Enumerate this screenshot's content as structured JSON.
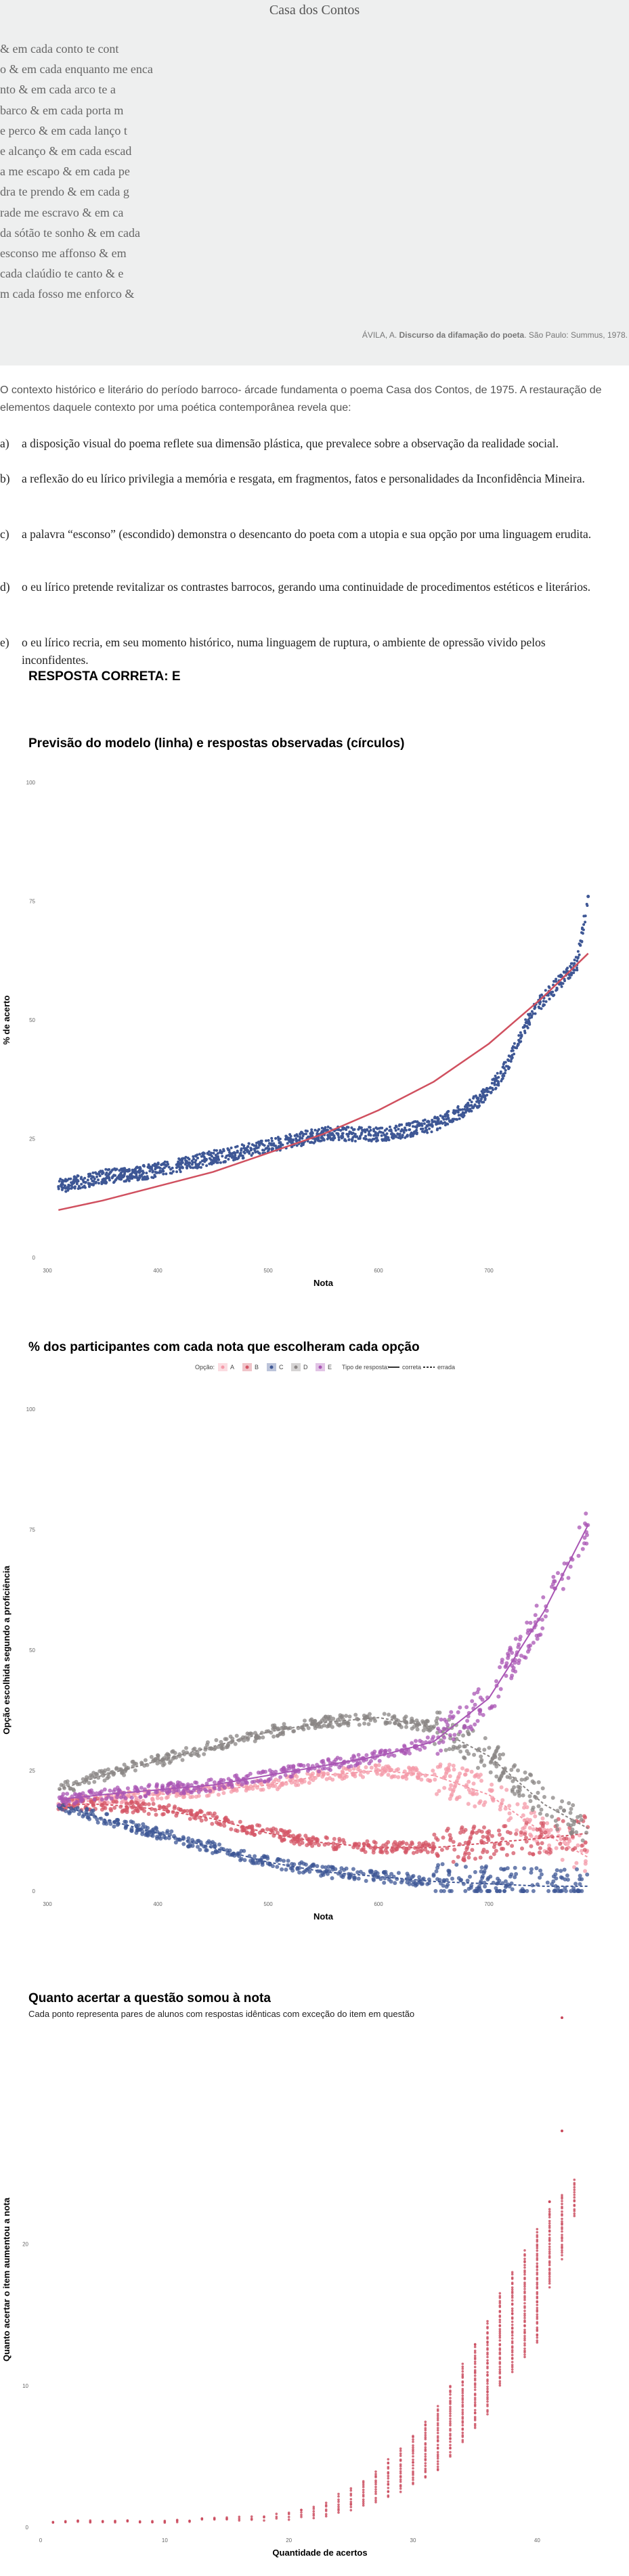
{
  "poem": {
    "title": "Casa dos Contos",
    "lines": [
      "& em cada conto te cont",
      "o & em cada enquanto me enca",
      "nto & em cada arco te a",
      "barco & em cada porta m",
      "e perco & em cada lanço t",
      "e alcanço & em cada escad",
      "a me escapo & em cada pe",
      "dra te prendo & em cada g",
      "rade me escravo & em ca",
      "da sótão te sonho & em cada",
      "esconso me affonso & em",
      "cada claúdio te canto & e",
      "m cada fosso me enforco &"
    ],
    "credit_prefix": "ÁVILA, A. ",
    "credit_title": "Discurso da difamação do poeta",
    "credit_suffix": ". São Paulo: Summus, 1978."
  },
  "question": {
    "intro": "O contexto histórico e literário do período barroco- árcade fundamenta o poema Casa dos Contos, de 1975. A restauração de elementos daquele contexto por uma poética contemporânea revela que:",
    "options": [
      {
        "letter": "a)",
        "text": "a disposição visual do poema reflete sua dimensão plástica, que prevalece sobre a observação da realidade social."
      },
      {
        "letter": "b)",
        "text": "a reflexão do eu lírico privilegia a memória e resgata, em fragmentos, fatos e personalidades da Inconfidência Mineira."
      },
      {
        "letter": "c)",
        "text": "a palavra “esconso” (escondido) demonstra o desencanto do poeta com a utopia e sua opção por uma linguagem erudita."
      },
      {
        "letter": "d)",
        "text": "o eu lírico pretende revitalizar os contrastes barrocos, gerando uma continuidade de procedimentos estéticos e literários."
      },
      {
        "letter": "e)",
        "text": "o eu lírico recria, em seu momento histórico, numa linguagem de ruptura, o ambiente de opressão vivido pelos inconfidentes."
      }
    ],
    "answer": "RESPOSTA CORRETA: E"
  },
  "chart_data": [
    {
      "type": "scatter",
      "title": "Previsão do modelo (linha) e respostas observadas (círculos)",
      "xlabel": "Nota",
      "ylabel": "% de acerto",
      "xlim": [
        300,
        800
      ],
      "ylim": [
        0,
        100
      ],
      "x_ticks": [
        "300",
        "400",
        "500",
        "600",
        "700"
      ],
      "y_ticks": [
        "0",
        "25",
        "50",
        "75",
        "100"
      ],
      "series": [
        {
          "kind": "points",
          "color": "#3e5795",
          "x": [
            310,
            330,
            350,
            370,
            390,
            410,
            430,
            450,
            470,
            490,
            510,
            530,
            550,
            570,
            590,
            610,
            630,
            650,
            670,
            690,
            700,
            710,
            720,
            730,
            740,
            760,
            780,
            790
          ],
          "y": [
            15,
            16,
            17,
            17.5,
            18,
            19,
            20,
            21,
            22,
            23,
            24,
            25,
            26,
            26,
            26,
            26,
            27,
            28,
            30,
            33,
            35,
            38,
            42,
            47,
            52,
            57,
            62,
            76
          ]
        },
        {
          "kind": "line",
          "color": "#d0505f",
          "x": [
            310,
            350,
            400,
            450,
            500,
            550,
            600,
            650,
            700,
            750,
            790
          ],
          "y": [
            10,
            12,
            15,
            18,
            22,
            26,
            31,
            37,
            45,
            55,
            64
          ]
        }
      ]
    },
    {
      "type": "scatter",
      "title": "% dos participantes com cada nota que escolheram cada opção",
      "xlabel": "Nota",
      "ylabel": "Opção escolhida segundo a proficiência",
      "xlim": [
        300,
        800
      ],
      "ylim": [
        0,
        100
      ],
      "x_ticks": [
        "300",
        "400",
        "500",
        "600",
        "700"
      ],
      "y_ticks": [
        "0",
        "25",
        "50",
        "75",
        "100"
      ],
      "legend": {
        "option_label": "Opção:",
        "options": [
          "A",
          "B",
          "C",
          "D",
          "E"
        ],
        "type_label": "Tipo de resposta:",
        "types": [
          "correta",
          "errada"
        ]
      },
      "series": [
        {
          "name": "A",
          "color": "#f49aa8",
          "x": [
            310,
            350,
            400,
            450,
            500,
            550,
            600,
            650,
            700,
            750,
            790
          ],
          "y": [
            18,
            19,
            20,
            21,
            22,
            24,
            25,
            24,
            20,
            12,
            7
          ]
        },
        {
          "name": "B",
          "color": "#d45565",
          "x": [
            310,
            350,
            400,
            450,
            500,
            550,
            600,
            650,
            700,
            750,
            790
          ],
          "y": [
            18,
            18,
            17,
            15,
            12,
            10,
            9,
            9,
            10,
            11,
            12
          ]
        },
        {
          "name": "C",
          "color": "#3e5795",
          "x": [
            310,
            350,
            400,
            450,
            500,
            550,
            600,
            650,
            700,
            750,
            790
          ],
          "y": [
            18,
            15,
            12,
            9,
            6,
            4,
            3,
            2,
            1.5,
            1,
            1
          ]
        },
        {
          "name": "D",
          "color": "#8a8584",
          "x": [
            310,
            350,
            400,
            450,
            500,
            550,
            600,
            650,
            700,
            750,
            790
          ],
          "y": [
            21,
            24,
            27,
            30,
            33,
            35,
            36,
            34,
            28,
            18,
            13
          ]
        },
        {
          "name": "E",
          "color": "#a956b4",
          "x": [
            310,
            350,
            400,
            450,
            500,
            550,
            600,
            650,
            700,
            750,
            790
          ],
          "y": [
            19,
            20,
            21,
            22,
            24,
            26,
            28,
            31,
            40,
            58,
            76
          ]
        }
      ]
    },
    {
      "type": "scatter",
      "title": "Quanto acertar a questão somou à nota",
      "subtitle": "Cada ponto representa pares de alunos com respostas idênticas com exceção do item em questão",
      "xlabel": "Quantidade de acertos",
      "ylabel": "Quanto acertar o item aumentou a nota",
      "xlim": [
        0,
        45
      ],
      "ylim": [
        0,
        35
      ],
      "x_ticks": [
        "0",
        "10",
        "20",
        "30",
        "40"
      ],
      "y_ticks": [
        "0",
        "10",
        "20"
      ],
      "series": [
        {
          "color": "#c9485b",
          "x": [
            1,
            2,
            3,
            4,
            5,
            6,
            7,
            8,
            9,
            10,
            11,
            12,
            13,
            14,
            15,
            16,
            17,
            18,
            19,
            20,
            21,
            22,
            23,
            24,
            25,
            26,
            27,
            28,
            29,
            30,
            31,
            32,
            33,
            34,
            35,
            36,
            37,
            38,
            39,
            40,
            41,
            42,
            43
          ],
          "y_min": [
            0.4,
            0.4,
            0.4,
            0.4,
            0.4,
            0.4,
            0.4,
            0.4,
            0.4,
            0.4,
            0.4,
            0.4,
            0.5,
            0.5,
            0.5,
            0.5,
            0.5,
            0.5,
            0.6,
            0.6,
            0.7,
            0.7,
            0.8,
            1.0,
            1.2,
            1.5,
            1.8,
            2.1,
            2.5,
            3.0,
            3.5,
            4.0,
            5.0,
            6.0,
            7.0,
            8.0,
            10.0,
            11.0,
            12.0,
            13.0,
            17.0,
            19.0,
            22.0
          ],
          "y_max": [
            0.4,
            0.4,
            0.4,
            0.4,
            0.4,
            0.4,
            0.4,
            0.4,
            0.4,
            0.4,
            0.5,
            0.5,
            0.6,
            0.6,
            0.7,
            0.7,
            0.8,
            0.8,
            1.0,
            1.1,
            1.3,
            1.5,
            1.8,
            2.3,
            2.7,
            3.3,
            4.0,
            4.8,
            5.5,
            6.5,
            7.5,
            8.5,
            10.0,
            11.5,
            13.0,
            14.5,
            16.5,
            18.0,
            19.5,
            21.0,
            22.5,
            23.5,
            24.5
          ],
          "outliers_x": [
            41,
            42,
            42
          ],
          "outliers_y": [
            23,
            28,
            36
          ]
        }
      ]
    }
  ]
}
